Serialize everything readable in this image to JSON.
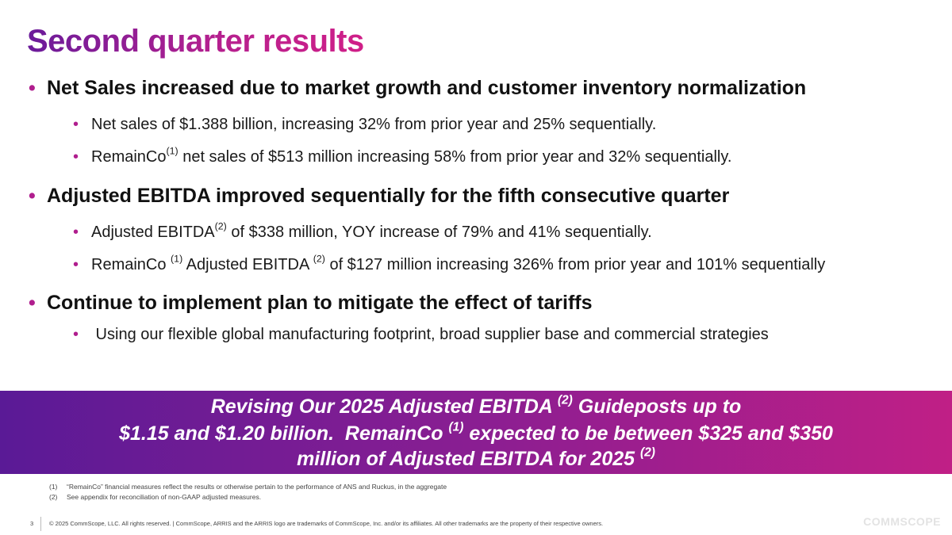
{
  "title": "Second quarter results",
  "bullet_marker": "•",
  "sections": [
    {
      "heading": "Net Sales increased due to market growth and customer inventory normalization",
      "items": [
        {
          "parts": [
            "Net sales of $1.388 billion, increasing 32% from prior year and 25% sequentially."
          ]
        },
        {
          "parts": [
            "RemainCo",
            "(1)",
            " net sales of $513 million increasing 58% from prior year and 32% sequentially."
          ]
        }
      ]
    },
    {
      "heading": "Adjusted EBITDA improved sequentially for the fifth consecutive quarter",
      "items": [
        {
          "parts": [
            "Adjusted EBITDA",
            "(2)",
            " of $338 million, YOY increase of 79% and 41% sequentially."
          ]
        },
        {
          "parts": [
            "RemainCo ",
            "(1)",
            " Adjusted EBITDA ",
            "(2)",
            " of $127 million increasing 326% from prior year and 101% sequentially"
          ]
        }
      ]
    },
    {
      "heading": "Continue to implement plan to mitigate the effect of tariffs",
      "items": [
        {
          "parts": [
            " Using our flexible global manufacturing footprint, broad supplier base and commercial strategies"
          ]
        }
      ]
    }
  ],
  "banner": {
    "line1": [
      "Revising Our 2025 Adjusted EBITDA ",
      "(2)",
      " Guideposts up to"
    ],
    "line2": [
      "$1.15 and $1.20 billion.  RemainCo ",
      "(1)",
      " expected to be between $325 and $350"
    ],
    "line3": [
      "million of Adjusted EBITDA for 2025 ",
      "(2)"
    ]
  },
  "footnotes": [
    {
      "num": "(1)",
      "text": "“RemainCo” financial measures reflect the results or otherwise pertain to the performance of ANS and Ruckus, in the aggregate"
    },
    {
      "num": "(2)",
      "text": "See appendix for reconciliation of non-GAAP adjusted measures."
    }
  ],
  "footer": {
    "page_number": "3",
    "legal": "© 2025 CommScope, LLC. All rights reserved. | CommScope, ARRIS and the ARRIS logo are trademarks of CommScope, Inc. and/or its affiliates.  All other trademarks are the property of their respective owners.",
    "logo": "COMMSCOPE"
  },
  "colors": {
    "accent": "#b01e8e",
    "title_gradient_start": "#6a1b9a",
    "title_gradient_end": "#d01f88",
    "banner_start": "#5a1a96",
    "banner_end": "#c01f86"
  }
}
